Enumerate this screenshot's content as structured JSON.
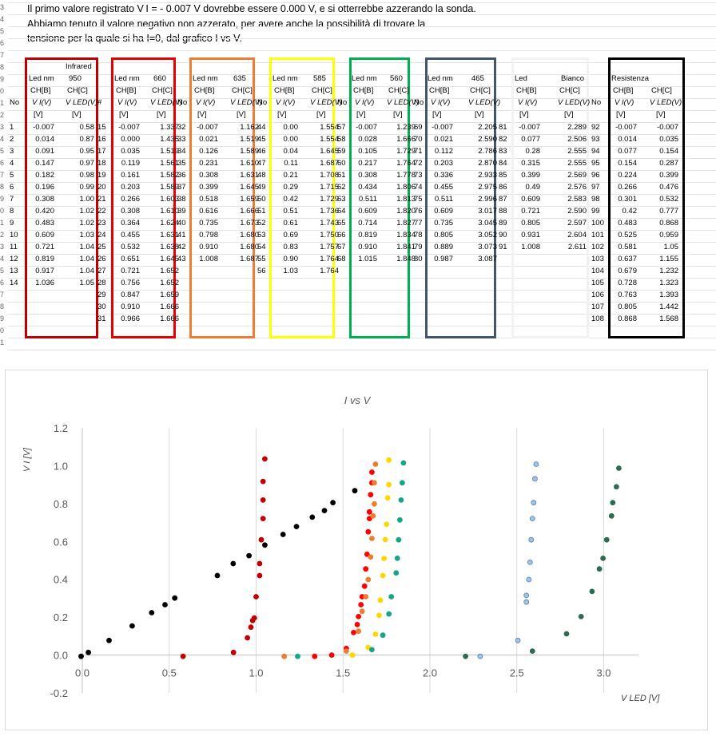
{
  "notes": [
    "Il primo valore registrato  V I  = - 0.007 V dovrebbe essere 0.000 V, e si otterrebbe azzerando la sonda.",
    "Abbiamo tenuto il valore negativo non azzerato, per avere anche la possibilità di trovare la",
    "tensione per la quale si ha I=0, dal grafico I vs V."
  ],
  "table": {
    "no_header": "No",
    "hash_header": "#",
    "units": "[V]",
    "col_vi": "V I(V)",
    "col_vled": "V LED(V)",
    "ch_b": "CH[B]",
    "ch_c": "CH[C]",
    "groups": [
      {
        "led_label": "Led nm",
        "led_value": "950",
        "extra": "Infrared",
        "color": "#c00000",
        "no": [
          "1",
          "2",
          "3",
          "4",
          "5",
          "6",
          "7",
          "8",
          "9",
          "10",
          "11",
          "12",
          "13",
          "14"
        ],
        "vi": [
          "-0.007",
          "0.014",
          "0.091",
          "0.147",
          "0.182",
          "0.196",
          "0.308",
          "0.420",
          "0.483",
          "0.609",
          "0.721",
          "0.819",
          "0.917",
          "1.036"
        ],
        "vled": [
          "0.58",
          "0.87",
          "0.95",
          "0.97",
          "0.98",
          "0.99",
          "1.00",
          "1.02",
          "1.02",
          "1.03",
          "1.04",
          "1.04",
          "1.04",
          "1.05"
        ]
      },
      {
        "led_label": "Led nm",
        "led_value": "660",
        "color": "#e60000",
        "no": [
          "15",
          "16",
          "17",
          "18",
          "19",
          "20",
          "21",
          "22",
          "23",
          "24",
          "25",
          "26",
          "27",
          "28",
          "29",
          "30",
          "31"
        ],
        "vi": [
          "-0.007",
          "0.000",
          "0.035",
          "0.119",
          "0.161",
          "0.203",
          "0.266",
          "0.308",
          "0.364",
          "0.455",
          "0.532",
          "0.651",
          "0.721",
          "0.756",
          "0.847",
          "0.910",
          "0.966"
        ],
        "vled": [
          "1.337",
          "1.435",
          "1.519",
          "1.561",
          "1.582",
          "1.589",
          "1.603",
          "1.610",
          "1.624",
          "1.631",
          "1.638",
          "1.645",
          "1.652",
          "1.652",
          "1.659",
          "1.666",
          "1.666"
        ]
      },
      {
        "led_label": "Led nm",
        "led_value": "635",
        "color": "#ed7d31",
        "no": [
          "32",
          "33",
          "34",
          "35",
          "36",
          "37",
          "38",
          "39",
          "40",
          "41",
          "42",
          "43"
        ],
        "vi": [
          "-0.007",
          "0.021",
          "0.126",
          "0.231",
          "0.308",
          "0.399",
          "0.518",
          "0.616",
          "0.735",
          "0.798",
          "0.910",
          "1.008"
        ],
        "vled": [
          "1.162",
          "1.519",
          "1.589",
          "1.610",
          "1.631",
          "1.645",
          "1.659",
          "1.666",
          "1.673",
          "1.680",
          "1.680",
          "1.687"
        ]
      },
      {
        "led_label": "Led nm",
        "led_value": "585",
        "color": "#ffff00",
        "no": [
          "44",
          "45",
          "46",
          "47",
          "48",
          "49",
          "50",
          "51",
          "52",
          "53",
          "54",
          "55",
          "56"
        ],
        "vi": [
          "0.00",
          "0.00",
          "0.04",
          "0.11",
          "0.21",
          "0.29",
          "0.42",
          "0.51",
          "0.61",
          "0.69",
          "0.83",
          "0.90",
          "1.03"
        ],
        "vled": [
          "1.554",
          "1.554",
          "1.645",
          "1.687",
          "1.708",
          "1.715",
          "1.729",
          "1.736",
          "1.743",
          "1.750",
          "1.757",
          "1.764",
          "1.764"
        ]
      },
      {
        "led_label": "Led nm",
        "led_value": "560",
        "color": "#00b050",
        "no": [
          "57",
          "58",
          "59",
          "60",
          "61",
          "62",
          "63",
          "64",
          "65",
          "66",
          "67",
          "68"
        ],
        "vi": [
          "-0.007",
          "0.028",
          "0.105",
          "0.217",
          "0.308",
          "0.434",
          "0.511",
          "0.609",
          "0.714",
          "0.819",
          "0.910",
          "1.015"
        ],
        "vled": [
          "1.239",
          "1.666",
          "1.729",
          "1.764",
          "1.778",
          "1.806",
          "1.813",
          "1.820",
          "1.827",
          "1.834",
          "1.841",
          "1.848"
        ]
      },
      {
        "led_label": "Led nm",
        "led_value": "465",
        "color": "#44546a",
        "no": [
          "69",
          "70",
          "71",
          "72",
          "73",
          "74",
          "75",
          "76",
          "77",
          "78",
          "79",
          "80"
        ],
        "vi": [
          "-0.007",
          "0.021",
          "0.112",
          "0.203",
          "0.336",
          "0.455",
          "0.511",
          "0.609",
          "0.735",
          "0.805",
          "0.889",
          "0.987"
        ],
        "vled": [
          "2.205",
          "2.590",
          "2.786",
          "2.870",
          "2.933",
          "2.975",
          "2.996",
          "3.017",
          "3.045",
          "3.052",
          "3.073",
          "3.087"
        ]
      },
      {
        "led_label": "Led",
        "led_value": "Bianco",
        "color": "#f2f2f2",
        "no": [
          "81",
          "82",
          "83",
          "84",
          "85",
          "86",
          "87",
          "88",
          "89",
          "90",
          "91"
        ],
        "vi": [
          "-0.007",
          "0.077",
          "0.28",
          "0.315",
          "0.399",
          "0.49",
          "0.609",
          "0.721",
          "0.805",
          "0.931",
          "1.008"
        ],
        "vled": [
          "2.289",
          "2.506",
          "2.555",
          "2.555",
          "2.569",
          "2.576",
          "2.583",
          "2.590",
          "2.597",
          "2.604",
          "2.611"
        ]
      },
      {
        "led_label": "Resistenza",
        "led_value": "",
        "color": "#000000",
        "no": [
          "92",
          "93",
          "94",
          "95",
          "96",
          "97",
          "98",
          "99",
          "100",
          "101",
          "102",
          "103",
          "104",
          "105",
          "106",
          "107",
          "108"
        ],
        "vi": [
          "-0.007",
          "0.014",
          "0.077",
          "0.154",
          "0.224",
          "0.266",
          "0.301",
          "0.42",
          "0.483",
          "0.525",
          "0.581",
          "0.637",
          "0.679",
          "0.728",
          "0.763",
          "0.805",
          "0.868"
        ],
        "vled": [
          "-0.007",
          "0.035",
          "0.154",
          "0.287",
          "0.399",
          "0.476",
          "0.532",
          "0.777",
          "0.868",
          "0.959",
          "1.05",
          "1.155",
          "1.232",
          "1.323",
          "1.393",
          "1.442",
          "1.568"
        ]
      }
    ]
  },
  "chart_data": {
    "type": "scatter",
    "title": "I vs V",
    "xlabel": "V LED [V]",
    "ylabel": "V I [V]",
    "xlim": [
      0,
      3.2
    ],
    "ylim": [
      -0.2,
      1.2
    ],
    "xticks": [
      "0.0",
      "0.5",
      "1.0",
      "1.5",
      "2.0",
      "2.5",
      "3.0"
    ],
    "yticks": [
      "-0.2",
      "0.0",
      "0.2",
      "0.4",
      "0.6",
      "0.8",
      "1.0",
      "1.2"
    ],
    "grid": "vertical",
    "series": [
      {
        "color": "#000000",
        "x": [
          -0.007,
          0.035,
          0.154,
          0.287,
          0.399,
          0.476,
          0.532,
          0.777,
          0.868,
          0.959,
          1.05,
          1.155,
          1.232,
          1.323,
          1.393,
          1.442,
          1.568
        ],
        "y": [
          -0.007,
          0.014,
          0.077,
          0.154,
          0.224,
          0.266,
          0.301,
          0.42,
          0.483,
          0.525,
          0.581,
          0.637,
          0.679,
          0.728,
          0.763,
          0.805,
          0.868
        ]
      },
      {
        "color": "#c00000",
        "x": [
          0.58,
          0.87,
          0.95,
          0.97,
          0.98,
          0.99,
          1.0,
          1.02,
          1.02,
          1.03,
          1.04,
          1.04,
          1.04,
          1.05
        ],
        "y": [
          -0.007,
          0.014,
          0.091,
          0.147,
          0.182,
          0.196,
          0.308,
          0.42,
          0.483,
          0.609,
          0.721,
          0.819,
          0.917,
          1.036
        ]
      },
      {
        "color": "#ff0000",
        "x": [
          1.337,
          1.435,
          1.519,
          1.561,
          1.582,
          1.589,
          1.603,
          1.61,
          1.624,
          1.631,
          1.638,
          1.645,
          1.652,
          1.652,
          1.659,
          1.666,
          1.666
        ],
        "y": [
          -0.007,
          0.0,
          0.035,
          0.119,
          0.161,
          0.203,
          0.266,
          0.308,
          0.364,
          0.455,
          0.532,
          0.651,
          0.721,
          0.756,
          0.847,
          0.91,
          0.966
        ]
      },
      {
        "color": "#ed7d31",
        "x": [
          1.162,
          1.519,
          1.589,
          1.61,
          1.631,
          1.645,
          1.659,
          1.666,
          1.673,
          1.68,
          1.68,
          1.687
        ],
        "y": [
          -0.007,
          0.021,
          0.126,
          0.231,
          0.308,
          0.399,
          0.518,
          0.616,
          0.735,
          0.798,
          0.91,
          1.008
        ]
      },
      {
        "color": "#ffd700",
        "x": [
          1.554,
          1.554,
          1.645,
          1.687,
          1.708,
          1.715,
          1.729,
          1.736,
          1.743,
          1.75,
          1.757,
          1.764,
          1.764
        ],
        "y": [
          0.0,
          0.0,
          0.04,
          0.11,
          0.21,
          0.29,
          0.42,
          0.51,
          0.61,
          0.69,
          0.83,
          0.9,
          1.03
        ]
      },
      {
        "color": "#17a589",
        "x": [
          1.239,
          1.666,
          1.729,
          1.764,
          1.778,
          1.806,
          1.813,
          1.82,
          1.827,
          1.834,
          1.841,
          1.848
        ],
        "y": [
          -0.007,
          0.028,
          0.105,
          0.217,
          0.308,
          0.434,
          0.511,
          0.609,
          0.714,
          0.819,
          0.91,
          1.015
        ]
      },
      {
        "color": "#2e6b4f",
        "x": [
          2.205,
          2.59,
          2.786,
          2.87,
          2.933,
          2.975,
          2.996,
          3.017,
          3.045,
          3.052,
          3.073,
          3.087
        ],
        "y": [
          -0.007,
          0.021,
          0.112,
          0.203,
          0.336,
          0.455,
          0.511,
          0.609,
          0.735,
          0.805,
          0.889,
          0.987
        ]
      },
      {
        "color": "#9dc3e6",
        "stroke": "#5b7fa8",
        "x": [
          2.289,
          2.506,
          2.555,
          2.555,
          2.569,
          2.576,
          2.583,
          2.59,
          2.597,
          2.604,
          2.611
        ],
        "y": [
          -0.007,
          0.077,
          0.28,
          0.315,
          0.399,
          0.49,
          0.609,
          0.721,
          0.805,
          0.931,
          1.008
        ]
      }
    ]
  }
}
